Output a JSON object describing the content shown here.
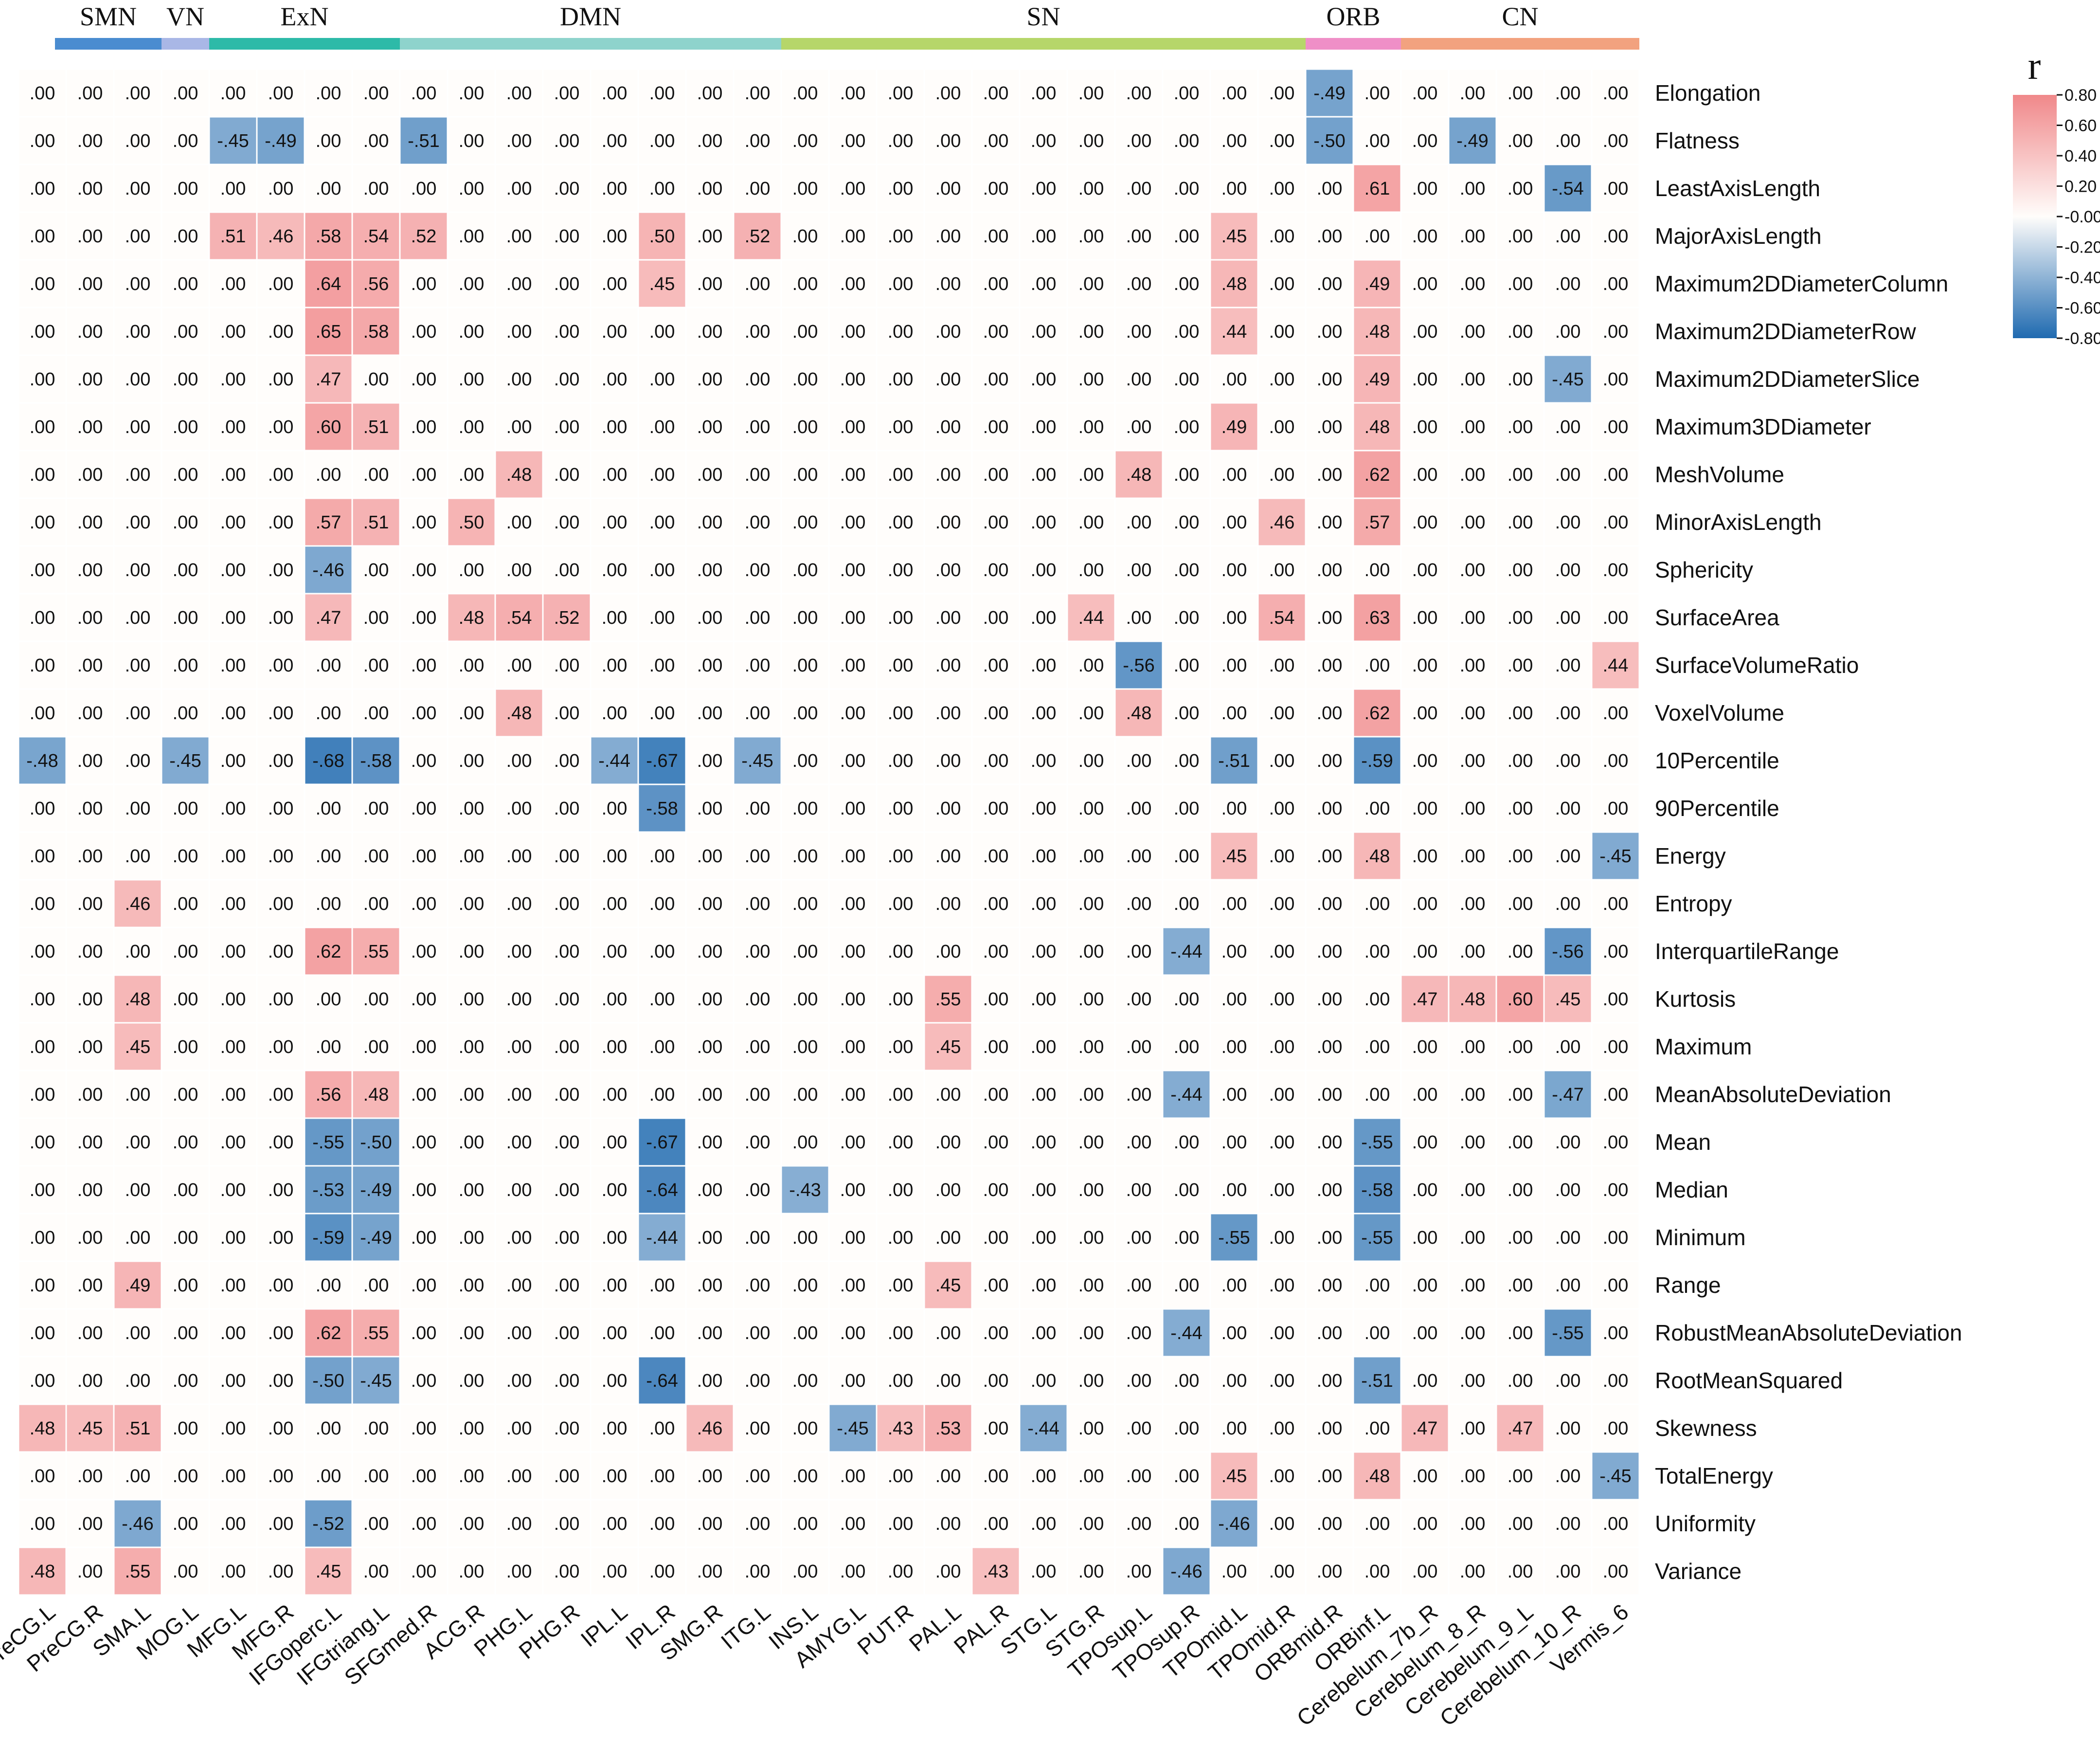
{
  "chart_data": {
    "type": "heatmap",
    "title": "",
    "legend_title": "r",
    "legend_ticks": [
      "0.80",
      "0.60",
      "0.40",
      "0.20",
      "-0.00",
      "-0.20",
      "-0.40",
      "-0.60",
      "-0.80"
    ],
    "value_range": [
      -0.8,
      0.8
    ],
    "colors": {
      "positive": "#f0888a",
      "negative": "#1f6ab0",
      "zero": "#fffdfb"
    },
    "networks": [
      {
        "name": "SMN",
        "start": 0,
        "end": 2,
        "color": "#4a8cd0"
      },
      {
        "name": "VN",
        "start": 3,
        "end": 3,
        "color": "#a9b7e6"
      },
      {
        "name": "ExN",
        "start": 4,
        "end": 7,
        "color": "#2dbaa8"
      },
      {
        "name": "DMN",
        "start": 8,
        "end": 15,
        "color": "#8ed3cc"
      },
      {
        "name": "SN",
        "start": 16,
        "end": 26,
        "color": "#b6d66a"
      },
      {
        "name": "ORB",
        "start": 27,
        "end": 28,
        "color": "#ef8fc7"
      },
      {
        "name": "CN",
        "start": 29,
        "end": 33,
        "color": "#f2a27f"
      }
    ],
    "columns": [
      "PreCG.L",
      "PreCG.R",
      "SMA.L",
      "MOG.L",
      "MFG.L",
      "MFG.R",
      "IFGoperc.L",
      "IFGtriang.L",
      "SFGmed.R",
      "ACG.R",
      "PHG.L",
      "PHG.R",
      "IPL.L",
      "IPL.R",
      "SMG.R",
      "ITG.L",
      "INS.L",
      "AMYG.L",
      "PUT.R",
      "PAL.L",
      "PAL.R",
      "STG.L",
      "STG.R",
      "TPOsup.L",
      "TPOsup.R",
      "TPOmid.L",
      "TPOmid.R",
      "ORBmid.R",
      "ORBinf.L",
      "Cerebelum_7b_R",
      "Cerebelum_8_R",
      "Cerebelum_9_L",
      "Cerebelum_10_R",
      "Vermis_6"
    ],
    "rows": [
      "Elongation",
      "Flatness",
      "LeastAxisLength",
      "MajorAxisLength",
      "Maximum2DDiameterColumn",
      "Maximum2DDiameterRow",
      "Maximum2DDiameterSlice",
      "Maximum3DDiameter",
      "MeshVolume",
      "MinorAxisLength",
      "Sphericity",
      "SurfaceArea",
      "SurfaceVolumeRatio",
      "VoxelVolume",
      "10Percentile",
      "90Percentile",
      "Energy",
      "Entropy",
      "InterquartileRange",
      "Kurtosis",
      "Maximum",
      "MeanAbsoluteDeviation",
      "Mean",
      "Median",
      "Minimum",
      "Range",
      "RobustMeanAbsoluteDeviation",
      "RootMeanSquared",
      "Skewness",
      "TotalEnergy",
      "Uniformity",
      "Variance"
    ],
    "values": [
      [
        0,
        0,
        0,
        0,
        0,
        0,
        0,
        0,
        0,
        0,
        0,
        0,
        0,
        0,
        0,
        0,
        0,
        0,
        0,
        0,
        0,
        0,
        0,
        0,
        0,
        0,
        0,
        -0.49,
        0,
        0,
        0,
        0,
        0,
        0
      ],
      [
        0,
        0,
        0,
        0,
        -0.45,
        -0.49,
        0,
        0,
        -0.51,
        0,
        0,
        0,
        0,
        0,
        0,
        0,
        0,
        0,
        0,
        0,
        0,
        0,
        0,
        0,
        0,
        0,
        0,
        -0.5,
        0,
        0,
        -0.49,
        0,
        0,
        0
      ],
      [
        0,
        0,
        0,
        0,
        0,
        0,
        0,
        0,
        0,
        0,
        0,
        0,
        0,
        0,
        0,
        0,
        0,
        0,
        0,
        0,
        0,
        0,
        0,
        0,
        0,
        0,
        0,
        0,
        0.61,
        0,
        0,
        0,
        -0.54,
        0
      ],
      [
        0,
        0,
        0,
        0,
        0.51,
        0.46,
        0.58,
        0.54,
        0.52,
        0,
        0,
        0,
        0,
        0.5,
        0,
        0.52,
        0,
        0,
        0,
        0,
        0,
        0,
        0,
        0,
        0,
        0.45,
        0,
        0,
        0,
        0,
        0,
        0,
        0,
        0
      ],
      [
        0,
        0,
        0,
        0,
        0,
        0,
        0.64,
        0.56,
        0,
        0,
        0,
        0,
        0,
        0.45,
        0,
        0,
        0,
        0,
        0,
        0,
        0,
        0,
        0,
        0,
        0,
        0.48,
        0,
        0,
        0.49,
        0,
        0,
        0,
        0,
        0
      ],
      [
        0,
        0,
        0,
        0,
        0,
        0,
        0.65,
        0.58,
        0,
        0,
        0,
        0,
        0,
        0,
        0,
        0,
        0,
        0,
        0,
        0,
        0,
        0,
        0,
        0,
        0,
        0.44,
        0,
        0,
        0.48,
        0,
        0,
        0,
        0,
        0
      ],
      [
        0,
        0,
        0,
        0,
        0,
        0,
        0.47,
        0,
        0,
        0,
        0,
        0,
        0,
        0,
        0,
        0,
        0,
        0,
        0,
        0,
        0,
        0,
        0,
        0,
        0,
        0,
        0,
        0,
        0.49,
        0,
        0,
        0,
        -0.45,
        0
      ],
      [
        0,
        0,
        0,
        0,
        0,
        0,
        0.6,
        0.51,
        0,
        0,
        0,
        0,
        0,
        0,
        0,
        0,
        0,
        0,
        0,
        0,
        0,
        0,
        0,
        0,
        0,
        0.49,
        0,
        0,
        0.48,
        0,
        0,
        0,
        0,
        0
      ],
      [
        0,
        0,
        0,
        0,
        0,
        0,
        0,
        0,
        0,
        0,
        0.48,
        0,
        0,
        0,
        0,
        0,
        0,
        0,
        0,
        0,
        0,
        0,
        0,
        0.48,
        0,
        0,
        0,
        0,
        0.62,
        0,
        0,
        0,
        0,
        0
      ],
      [
        0,
        0,
        0,
        0,
        0,
        0,
        0.57,
        0.51,
        0,
        0.5,
        0,
        0,
        0,
        0,
        0,
        0,
        0,
        0,
        0,
        0,
        0,
        0,
        0,
        0,
        0,
        0,
        0.46,
        0,
        0.57,
        0,
        0,
        0,
        0,
        0
      ],
      [
        0,
        0,
        0,
        0,
        0,
        0,
        -0.46,
        0,
        0,
        0,
        0,
        0,
        0,
        0,
        0,
        0,
        0,
        0,
        0,
        0,
        0,
        0,
        0,
        0,
        0,
        0,
        0,
        0,
        0,
        0,
        0,
        0,
        0,
        0
      ],
      [
        0,
        0,
        0,
        0,
        0,
        0,
        0.47,
        0,
        0,
        0.48,
        0.54,
        0.52,
        0,
        0,
        0,
        0,
        0,
        0,
        0,
        0,
        0,
        0,
        0.44,
        0,
        0,
        0,
        0.54,
        0,
        0.63,
        0,
        0,
        0,
        0,
        0
      ],
      [
        0,
        0,
        0,
        0,
        0,
        0,
        0,
        0,
        0,
        0,
        0,
        0,
        0,
        0,
        0,
        0,
        0,
        0,
        0,
        0,
        0,
        0,
        0,
        -0.56,
        0,
        0,
        0,
        0,
        0,
        0,
        0,
        0,
        0,
        0.44
      ],
      [
        0,
        0,
        0,
        0,
        0,
        0,
        0,
        0,
        0,
        0,
        0.48,
        0,
        0,
        0,
        0,
        0,
        0,
        0,
        0,
        0,
        0,
        0,
        0,
        0.48,
        0,
        0,
        0,
        0,
        0.62,
        0,
        0,
        0,
        0,
        0
      ],
      [
        -0.48,
        0,
        0,
        -0.45,
        0,
        0,
        -0.68,
        -0.58,
        0,
        0,
        0,
        0,
        -0.44,
        -0.67,
        0,
        -0.45,
        0,
        0,
        0,
        0,
        0,
        0,
        0,
        0,
        0,
        -0.51,
        0,
        0,
        -0.59,
        0,
        0,
        0,
        0,
        0
      ],
      [
        0,
        0,
        0,
        0,
        0,
        0,
        0,
        0,
        0,
        0,
        0,
        0,
        0,
        -0.58,
        0,
        0,
        0,
        0,
        0,
        0,
        0,
        0,
        0,
        0,
        0,
        0,
        0,
        0,
        0,
        0,
        0,
        0,
        0,
        0
      ],
      [
        0,
        0,
        0,
        0,
        0,
        0,
        0,
        0,
        0,
        0,
        0,
        0,
        0,
        0,
        0,
        0,
        0,
        0,
        0,
        0,
        0,
        0,
        0,
        0,
        0,
        0.45,
        0,
        0,
        0.48,
        0,
        0,
        0,
        0,
        -0.45
      ],
      [
        0,
        0,
        0.46,
        0,
        0,
        0,
        0,
        0,
        0,
        0,
        0,
        0,
        0,
        0,
        0,
        0,
        0,
        0,
        0,
        0,
        0,
        0,
        0,
        0,
        0,
        0,
        0,
        0,
        0,
        0,
        0,
        0,
        0,
        0
      ],
      [
        0,
        0,
        0,
        0,
        0,
        0,
        0.62,
        0.55,
        0,
        0,
        0,
        0,
        0,
        0,
        0,
        0,
        0,
        0,
        0,
        0,
        0,
        0,
        0,
        0,
        -0.44,
        0,
        0,
        0,
        0,
        0,
        0,
        0,
        -0.56,
        0
      ],
      [
        0,
        0,
        0.48,
        0,
        0,
        0,
        0,
        0,
        0,
        0,
        0,
        0,
        0,
        0,
        0,
        0,
        0,
        0,
        0,
        0.55,
        0,
        0,
        0,
        0,
        0,
        0,
        0,
        0,
        0,
        0.47,
        0.48,
        0.6,
        0.45,
        0
      ],
      [
        0,
        0,
        0.45,
        0,
        0,
        0,
        0,
        0,
        0,
        0,
        0,
        0,
        0,
        0,
        0,
        0,
        0,
        0,
        0,
        0.45,
        0,
        0,
        0,
        0,
        0,
        0,
        0,
        0,
        0,
        0,
        0,
        0,
        0,
        0
      ],
      [
        0,
        0,
        0,
        0,
        0,
        0,
        0.56,
        0.48,
        0,
        0,
        0,
        0,
        0,
        0,
        0,
        0,
        0,
        0,
        0,
        0,
        0,
        0,
        0,
        0,
        -0.44,
        0,
        0,
        0,
        0,
        0,
        0,
        0,
        -0.47,
        0
      ],
      [
        0,
        0,
        0,
        0,
        0,
        0,
        -0.55,
        -0.5,
        0,
        0,
        0,
        0,
        0,
        -0.67,
        0,
        0,
        0,
        0,
        0,
        0,
        0,
        0,
        0,
        0,
        0,
        0,
        0,
        0,
        -0.55,
        0,
        0,
        0,
        0,
        0
      ],
      [
        0,
        0,
        0,
        0,
        0,
        0,
        -0.53,
        -0.49,
        0,
        0,
        0,
        0,
        0,
        -0.64,
        0,
        0,
        -0.43,
        0,
        0,
        0,
        0,
        0,
        0,
        0,
        0,
        0,
        0,
        0,
        -0.58,
        0,
        0,
        0,
        0,
        0
      ],
      [
        0,
        0,
        0,
        0,
        0,
        0,
        -0.59,
        -0.49,
        0,
        0,
        0,
        0,
        0,
        -0.44,
        0,
        0,
        0,
        0,
        0,
        0,
        0,
        0,
        0,
        0,
        0,
        -0.55,
        0,
        0,
        -0.55,
        0,
        0,
        0,
        0,
        0
      ],
      [
        0,
        0,
        0.49,
        0,
        0,
        0,
        0,
        0,
        0,
        0,
        0,
        0,
        0,
        0,
        0,
        0,
        0,
        0,
        0,
        0.45,
        0,
        0,
        0,
        0,
        0,
        0,
        0,
        0,
        0,
        0,
        0,
        0,
        0,
        0
      ],
      [
        0,
        0,
        0,
        0,
        0,
        0,
        0.62,
        0.55,
        0,
        0,
        0,
        0,
        0,
        0,
        0,
        0,
        0,
        0,
        0,
        0,
        0,
        0,
        0,
        0,
        -0.44,
        0,
        0,
        0,
        0,
        0,
        0,
        0,
        -0.55,
        0
      ],
      [
        0,
        0,
        0,
        0,
        0,
        0,
        -0.5,
        -0.45,
        0,
        0,
        0,
        0,
        0,
        -0.64,
        0,
        0,
        0,
        0,
        0,
        0,
        0,
        0,
        0,
        0,
        0,
        0,
        0,
        0,
        -0.51,
        0,
        0,
        0,
        0,
        0
      ],
      [
        0.48,
        0.45,
        0.51,
        0,
        0,
        0,
        0,
        0,
        0,
        0,
        0,
        0,
        0,
        0,
        0.46,
        0,
        0,
        -0.45,
        0.43,
        0.53,
        0,
        -0.44,
        0,
        0,
        0,
        0,
        0,
        0,
        0,
        0.47,
        0,
        0.47,
        0,
        0
      ],
      [
        0,
        0,
        0,
        0,
        0,
        0,
        0,
        0,
        0,
        0,
        0,
        0,
        0,
        0,
        0,
        0,
        0,
        0,
        0,
        0,
        0,
        0,
        0,
        0,
        0,
        0.45,
        0,
        0,
        0.48,
        0,
        0,
        0,
        0,
        -0.45
      ],
      [
        0,
        0,
        -0.46,
        0,
        0,
        0,
        -0.52,
        0,
        0,
        0,
        0,
        0,
        0,
        0,
        0,
        0,
        0,
        0,
        0,
        0,
        0,
        0,
        0,
        0,
        0,
        -0.46,
        0,
        0,
        0,
        0,
        0,
        0,
        0,
        0
      ],
      [
        0.48,
        0,
        0.55,
        0,
        0,
        0,
        0.45,
        0,
        0,
        0,
        0,
        0,
        0,
        0,
        0,
        0,
        0,
        0,
        0,
        0,
        0.43,
        0,
        0,
        0,
        -0.46,
        0,
        0,
        0,
        0,
        0,
        0,
        0,
        0,
        0
      ]
    ]
  }
}
